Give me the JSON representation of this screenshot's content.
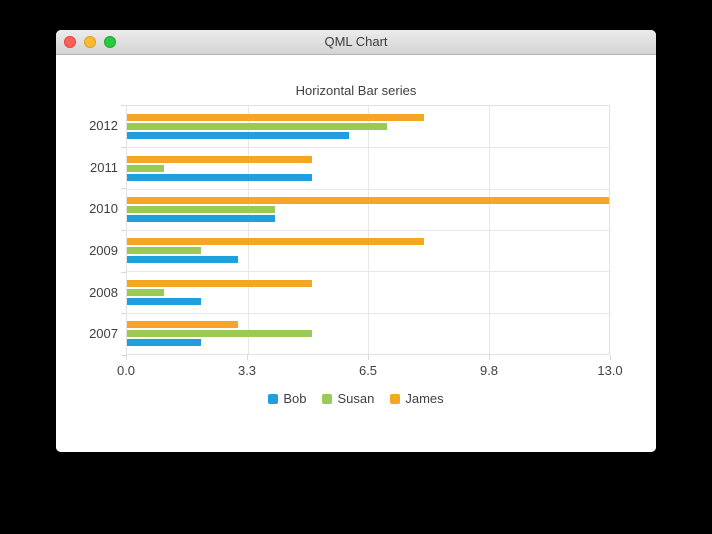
{
  "window": {
    "title": "QML Chart",
    "controls": {
      "close": "close",
      "minimize": "minimize",
      "zoom": "zoom"
    }
  },
  "chart_data": {
    "type": "bar",
    "orientation": "horizontal",
    "title": "Horizontal Bar series",
    "categories": [
      "2007",
      "2008",
      "2009",
      "2010",
      "2011",
      "2012"
    ],
    "categories_display_top_to_bottom": [
      "2012",
      "2011",
      "2010",
      "2009",
      "2008",
      "2007"
    ],
    "series": [
      {
        "name": "Bob",
        "color": "#209fdf",
        "values": [
          2,
          2,
          3,
          4,
          5,
          6
        ]
      },
      {
        "name": "Susan",
        "color": "#99ca53",
        "values": [
          5,
          1,
          2,
          4,
          1,
          7
        ]
      },
      {
        "name": "James",
        "color": "#f6a625",
        "values": [
          3,
          5,
          8,
          13,
          5,
          8
        ]
      }
    ],
    "x_tick_labels": [
      "0.0",
      "3.3",
      "6.5",
      "9.8",
      "13.0"
    ],
    "xlim": [
      0,
      13
    ],
    "grid": true,
    "legend_position": "bottom"
  },
  "colors": {
    "grid": "#e7e7e7",
    "axis_tick": "#d9d9d9",
    "label": "#404044",
    "window_background": "#ffffff",
    "desktop_background": "#000000",
    "titlebar_gradient_top": "#ececec",
    "titlebar_gradient_bottom": "#d4d4d4",
    "traffic_red": "#ff5f57",
    "traffic_yellow": "#febc2e",
    "traffic_green": "#28c840"
  }
}
